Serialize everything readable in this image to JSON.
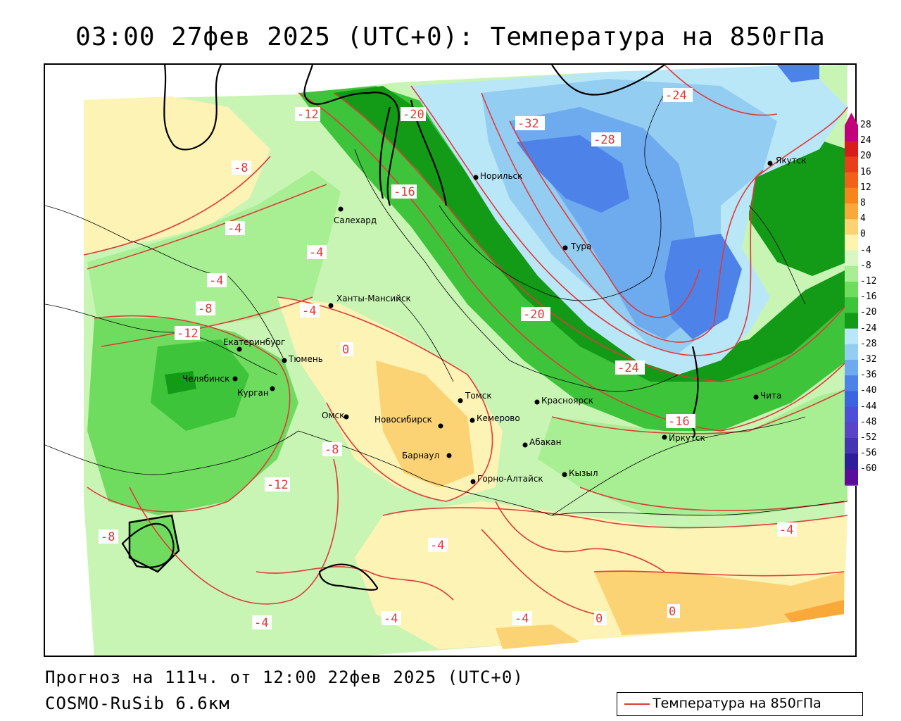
{
  "title": "03:00 27фев 2025 (UTC+0): Температура на 850гПа",
  "footer": {
    "forecast": "Прогноз на 111ч. от 12:00 22фев 2025 (UTC+0)",
    "model": "COSMO-RuSib 6.6км"
  },
  "legend": {
    "label": "Температура на 850гПа",
    "line_color": "#e03a3a"
  },
  "colorbar": {
    "levels": [
      "28",
      "24",
      "20",
      "16",
      "12",
      "8",
      "4",
      "0",
      "-4",
      "-8",
      "-12",
      "-16",
      "-20",
      "-24",
      "-28",
      "-32",
      "-36",
      "-40",
      "-44",
      "-48",
      "-52",
      "-56",
      "-60"
    ],
    "colors": [
      "#c2007a",
      "#d81b1b",
      "#e8401a",
      "#f2611a",
      "#f7851e",
      "#f9a93a",
      "#fbd274",
      "#fff3b0",
      "#d9f7c4",
      "#a8ee92",
      "#6fdc60",
      "#3ec43a",
      "#139a16",
      "#b9e7f7",
      "#94cdf2",
      "#6eaaee",
      "#4d83e8",
      "#3d64e0",
      "#4d4fd8",
      "#5a44c8",
      "#4634b4",
      "#2f1d9c",
      "#5a0c9a"
    ]
  },
  "cities": [
    {
      "name": "Якутск"
    },
    {
      "name": "Норильск"
    },
    {
      "name": "Салехард"
    },
    {
      "name": "Тура"
    },
    {
      "name": "Ханты-Мансийск"
    },
    {
      "name": "Екатеринбург"
    },
    {
      "name": "Тюмень"
    },
    {
      "name": "Челябинск"
    },
    {
      "name": "Курган"
    },
    {
      "name": "Омск"
    },
    {
      "name": "Новосибирск"
    },
    {
      "name": "Томск"
    },
    {
      "name": "Кемерово"
    },
    {
      "name": "Красноярск"
    },
    {
      "name": "Барнаул"
    },
    {
      "name": "Абакан"
    },
    {
      "name": "Кызыл"
    },
    {
      "name": "Горно-Алтайск"
    },
    {
      "name": "Иркутск"
    },
    {
      "name": "Чита"
    }
  ],
  "isotherm_labels": [
    "-12",
    "-20",
    "-8",
    "-16",
    "-32",
    "-28",
    "-24",
    "-4",
    "-8",
    "-4",
    "-4",
    "-12",
    "-4",
    "0",
    "-20",
    "-24",
    "-8",
    "-12",
    "-4",
    "-4",
    "-4",
    "-4",
    "-8",
    "-4",
    "0",
    "0",
    "-16"
  ]
}
